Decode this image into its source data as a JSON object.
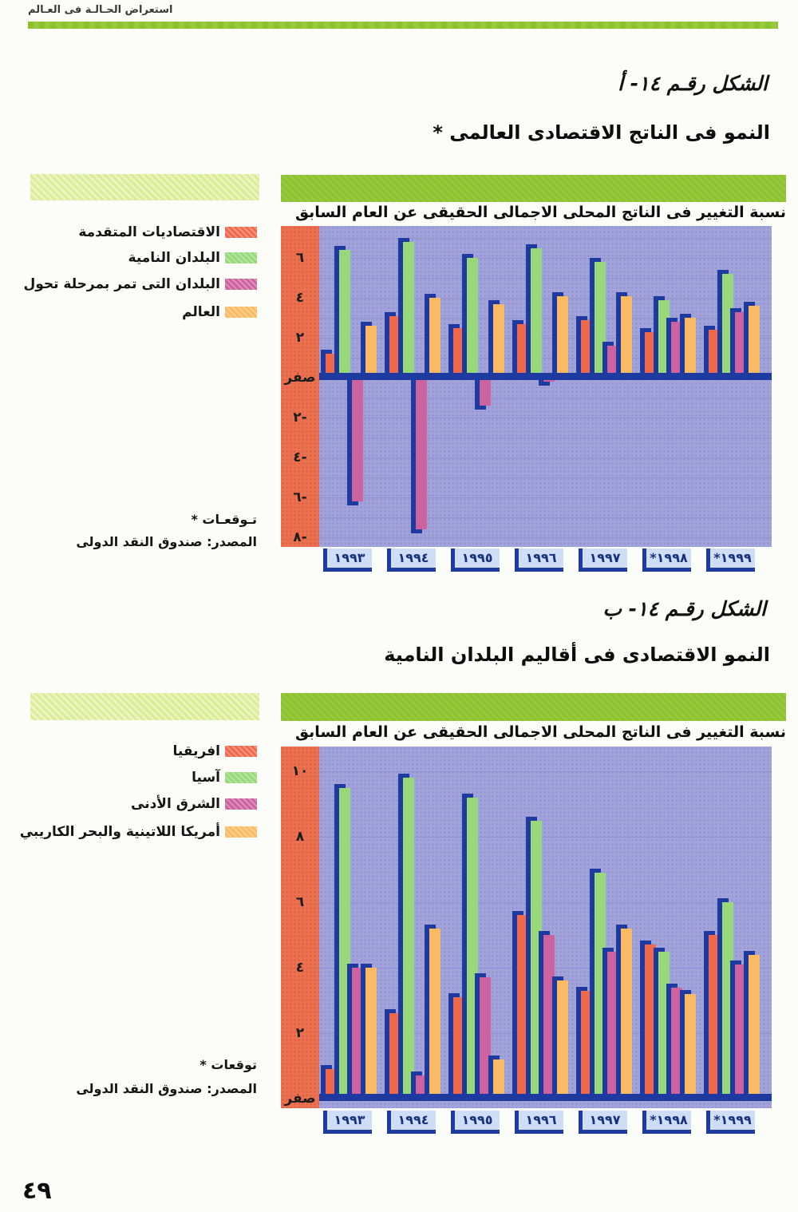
{
  "header": {
    "text": "استعراض الحـالـة فى العـالم"
  },
  "page_number": "٤٩",
  "figure_a": {
    "caption": "الشكل رقـم ١٤- أ",
    "footnote": "* تـوقعـات",
    "source": "المصدر: صندوق النقد الدولى"
  },
  "figure_b": {
    "caption": "الشكل رقـم ١٤- ب",
    "footnote": "* توقعات",
    "source": "المصدر: صندوق النقد الدولى"
  },
  "colors": {
    "accent_green": "#8cc22c",
    "pale_green_band": "#d9ec92",
    "axis_strip_red": "#ec7150",
    "plot_background": "#a3a3db",
    "bar_shadow_blue": "#1e3aa0",
    "year_box_blue": "#cfdef6"
  },
  "chart_data": [
    {
      "type": "bar",
      "title": "النمو فى الناتج الاقتصادى العالمى *",
      "subtitle": "نسبة التغيير فى الناتج المحلى الاجمالى الحقيقى عن العام السابق",
      "categories": [
        "١٩٩٣",
        "١٩٩٤",
        "١٩٩٥",
        "١٩٩٦",
        "١٩٩٧",
        "*١٩٩٨",
        "*١٩٩٩"
      ],
      "series": [
        {
          "name": "الاقتصاديات المتقدمة",
          "color": "#f1694c",
          "values": [
            1.2,
            3.1,
            2.5,
            2.7,
            2.9,
            2.3,
            2.4
          ]
        },
        {
          "name": "البلدان النامية",
          "color": "#97d87a",
          "values": [
            6.4,
            6.8,
            6.0,
            6.5,
            5.8,
            3.9,
            5.2
          ]
        },
        {
          "name": "البلدان التى تمر بمرحلة تحول",
          "color": "#cd639e",
          "values": [
            -6.2,
            -7.6,
            -1.4,
            -0.2,
            1.6,
            2.8,
            3.3
          ]
        },
        {
          "name": "العالم",
          "color": "#fbbb62",
          "values": [
            2.6,
            4.0,
            3.7,
            4.1,
            4.1,
            3.0,
            3.6
          ]
        }
      ],
      "ylim": [
        -8.5,
        7.6
      ],
      "gridline_step": 1,
      "legend_position": "left",
      "yticks": [
        {
          "value": 6,
          "label": "٦"
        },
        {
          "value": 4,
          "label": "٤"
        },
        {
          "value": 2,
          "label": "٢"
        },
        {
          "value": 0,
          "label": "صفر"
        },
        {
          "value": -2,
          "label": "٢-"
        },
        {
          "value": -4,
          "label": "٤-"
        },
        {
          "value": -6,
          "label": "٦-"
        },
        {
          "value": -8,
          "label": "٨-"
        }
      ]
    },
    {
      "type": "bar",
      "title": "النمو الاقتصادى فى أقاليم البلدان النامية",
      "subtitle": "نسبة التغيير فى الناتج المحلى الاجمالى الحقيقى عن العام السابق",
      "categories": [
        "١٩٩٣",
        "١٩٩٤",
        "١٩٩٥",
        "١٩٩٦",
        "١٩٩٧",
        "*١٩٩٨",
        "*١٩٩٩"
      ],
      "series": [
        {
          "name": "افريقيا",
          "color": "#f1694c",
          "values": [
            0.9,
            2.6,
            3.1,
            5.6,
            3.3,
            4.7,
            5.0
          ]
        },
        {
          "name": "آسيا",
          "color": "#97d87a",
          "values": [
            9.5,
            9.8,
            9.2,
            8.5,
            6.9,
            4.5,
            6.0
          ]
        },
        {
          "name": "الشرق الأدنى",
          "color": "#cd639e",
          "values": [
            4.0,
            0.7,
            3.7,
            5.0,
            4.5,
            3.4,
            4.1
          ]
        },
        {
          "name": "أمريكا اللاتينية والبحر الكاريبي",
          "color": "#fbbb62",
          "values": [
            4.0,
            5.2,
            1.2,
            3.6,
            5.2,
            3.2,
            4.4
          ]
        }
      ],
      "ylim": [
        0,
        10.8
      ],
      "gridline_step": 2,
      "legend_position": "left",
      "yticks": [
        {
          "value": 10,
          "label": "١٠"
        },
        {
          "value": 8,
          "label": "٨"
        },
        {
          "value": 6,
          "label": "٦"
        },
        {
          "value": 4,
          "label": "٤"
        },
        {
          "value": 2,
          "label": "٢"
        },
        {
          "value": 0,
          "label": "صفر"
        }
      ]
    }
  ]
}
